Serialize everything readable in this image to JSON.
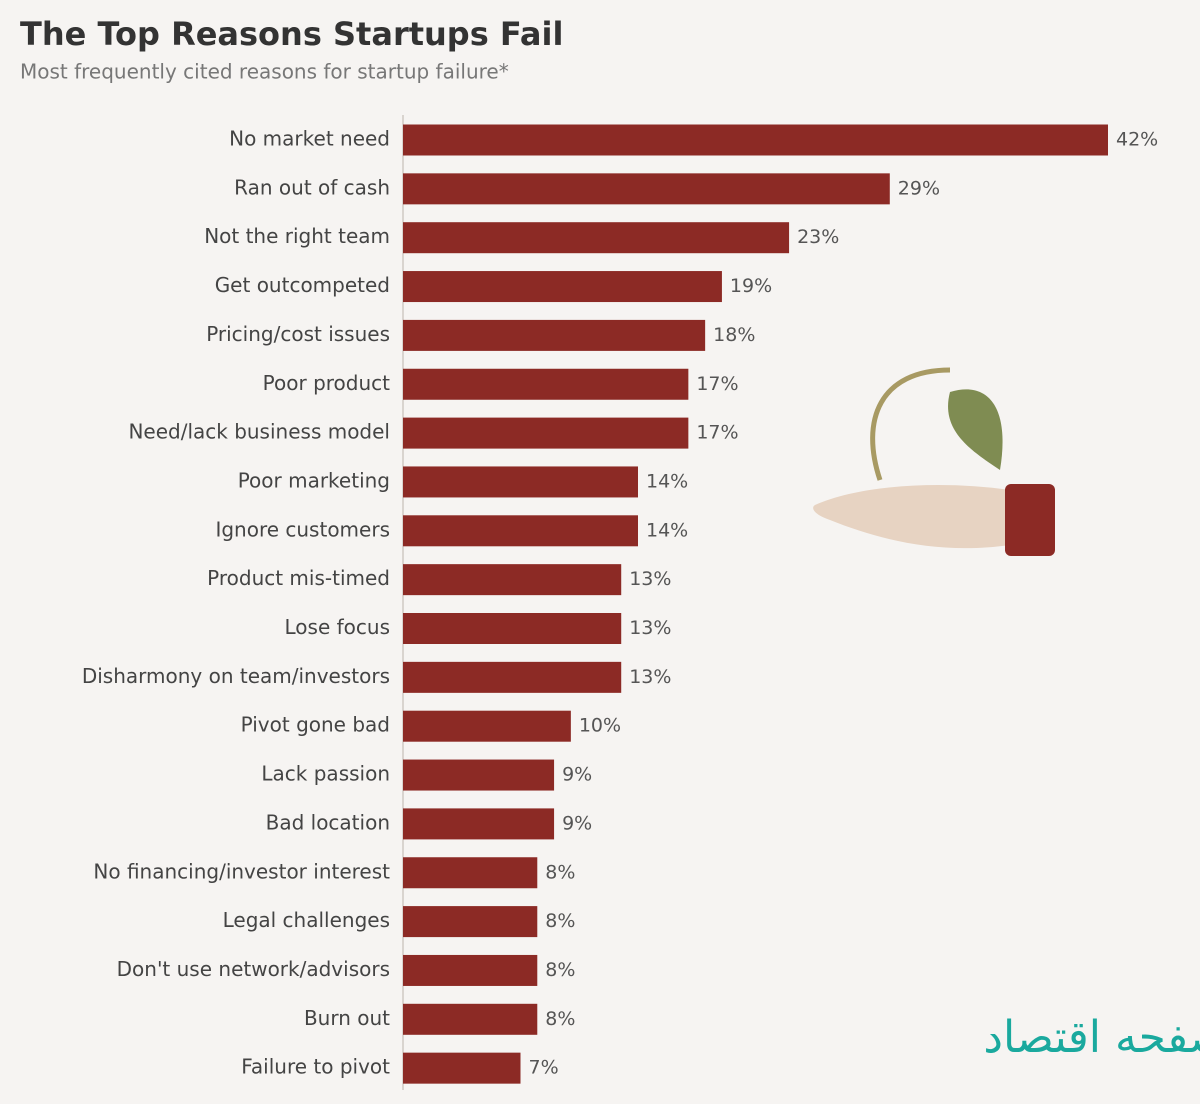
{
  "chart_data": {
    "type": "bar",
    "orientation": "horizontal",
    "title": "The Top Reasons Startups Fail",
    "subtitle": "Most frequently cited reasons for startup failure*",
    "categories": [
      "No market need",
      "Ran out of cash",
      "Not the right team",
      "Get outcompeted",
      "Pricing/cost issues",
      "Poor product",
      "Need/lack business model",
      "Poor marketing",
      "Ignore customers",
      "Product mis-timed",
      "Lose focus",
      "Disharmony on team/investors",
      "Pivot gone bad",
      "Lack passion",
      "Bad location",
      "No financing/investor interest",
      "Legal challenges",
      "Don't use network/advisors",
      "Burn out",
      "Failure to pivot"
    ],
    "values": [
      42,
      29,
      23,
      19,
      18,
      17,
      17,
      14,
      14,
      13,
      13,
      13,
      10,
      9,
      9,
      8,
      8,
      8,
      8,
      7
    ],
    "value_labels": [
      "42%",
      "29%",
      "23%",
      "19%",
      "18%",
      "17%",
      "17%",
      "14%",
      "14%",
      "13%",
      "13%",
      "13%",
      "10%",
      "9%",
      "9%",
      "8%",
      "8%",
      "8%",
      "8%",
      "7%"
    ],
    "color": "#8c2a25"
  },
  "watermark": "صفحه اقتصاد"
}
